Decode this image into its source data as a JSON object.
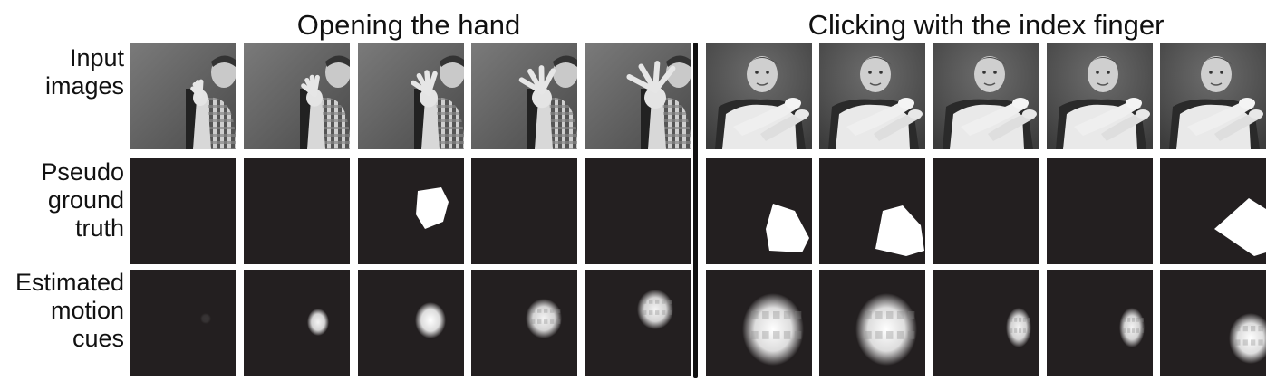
{
  "figure": {
    "groups": [
      {
        "title": "Opening the hand"
      },
      {
        "title": "Clicking with the index finger"
      }
    ],
    "rows": [
      {
        "label_lines": [
          "Input",
          "images"
        ],
        "kind": "photo"
      },
      {
        "label_lines": [
          "Pseudo",
          "ground",
          "truth"
        ],
        "kind": "mask"
      },
      {
        "label_lines": [
          "Estimated",
          "motion",
          "cues"
        ],
        "kind": "cue"
      }
    ],
    "columns": [
      {
        "scene": "open",
        "mask": null,
        "cue": "faint"
      },
      {
        "scene": "open",
        "mask": null,
        "cue": "small"
      },
      {
        "scene": "open",
        "mask": "blobA",
        "cue": "medium"
      },
      {
        "scene": "open",
        "mask": null,
        "cue": "textured"
      },
      {
        "scene": "open",
        "mask": null,
        "cue": "textured-high"
      },
      {
        "scene": "click",
        "mask": "blobB",
        "cue": "large"
      },
      {
        "scene": "click",
        "mask": "blobC",
        "cue": "large"
      },
      {
        "scene": "click",
        "mask": null,
        "cue": "small-right"
      },
      {
        "scene": "click",
        "mask": null,
        "cue": "small-right"
      },
      {
        "scene": "click",
        "mask": "blobD",
        "cue": "right-edge"
      }
    ]
  }
}
